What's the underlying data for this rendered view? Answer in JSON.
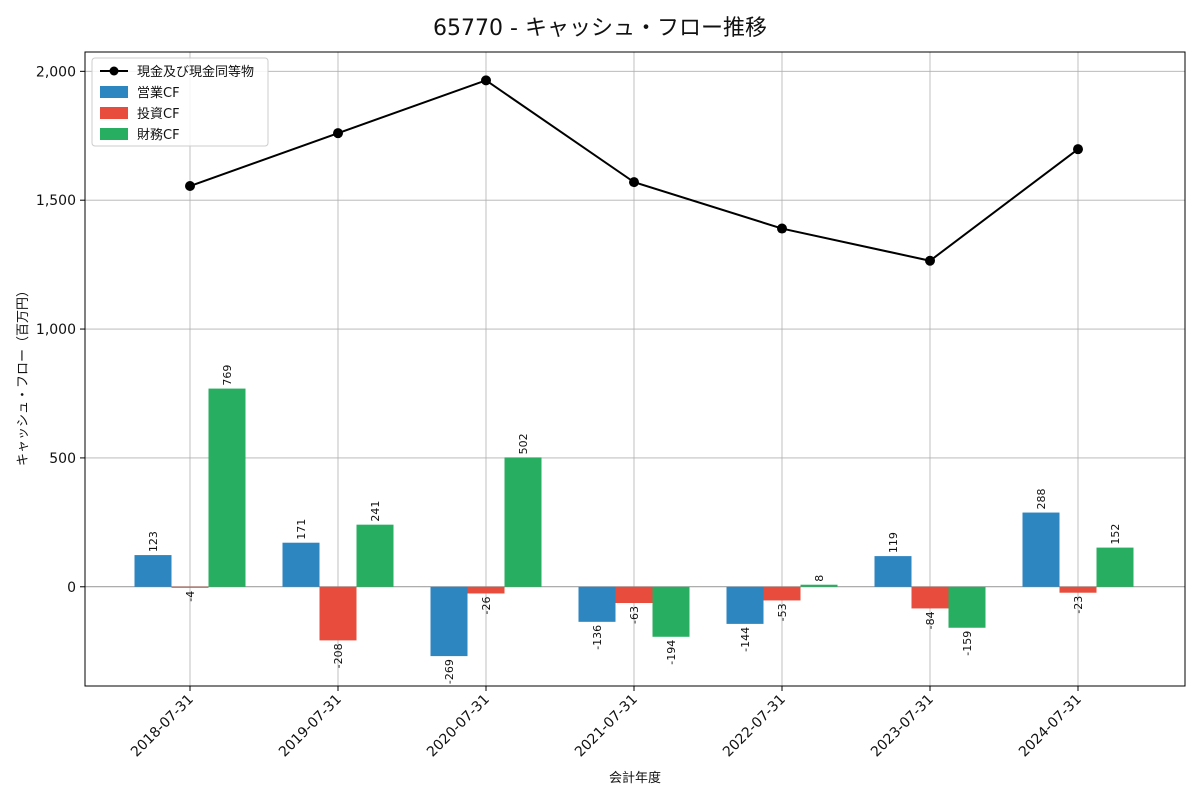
{
  "chart_data": {
    "type": "bar",
    "title": "65770 - キャッシュ・フロー推移",
    "xlabel": "会計年度",
    "ylabel": "キャッシュ・フロー（百万円）",
    "ylim": [
      -385,
      2075
    ],
    "yticks": [
      0,
      500,
      1000,
      1500,
      2000
    ],
    "ytick_labels": [
      "0",
      "500",
      "1,000",
      "1,500",
      "2,000"
    ],
    "grid": true,
    "legend_position": "top-left",
    "categories": [
      "2018-07-31",
      "2019-07-31",
      "2020-07-31",
      "2021-07-31",
      "2022-07-31",
      "2023-07-31",
      "2024-07-31"
    ],
    "series": [
      {
        "name": "営業CF",
        "kind": "bar",
        "color": "#2e86c1",
        "values": [
          123,
          171,
          -269,
          -136,
          -144,
          119,
          288
        ]
      },
      {
        "name": "投資CF",
        "kind": "bar",
        "color": "#e74c3c",
        "values": [
          -4,
          -208,
          -26,
          -63,
          -53,
          -84,
          -23
        ]
      },
      {
        "name": "財務CF",
        "kind": "bar",
        "color": "#27ae60",
        "values": [
          769,
          241,
          502,
          -194,
          8,
          -159,
          152
        ]
      }
    ],
    "line_series": {
      "name": "現金及び現金同等物",
      "kind": "line",
      "color": "#000000",
      "values": [
        1555,
        1760,
        1965,
        1570,
        1390,
        1265,
        1698
      ]
    }
  }
}
